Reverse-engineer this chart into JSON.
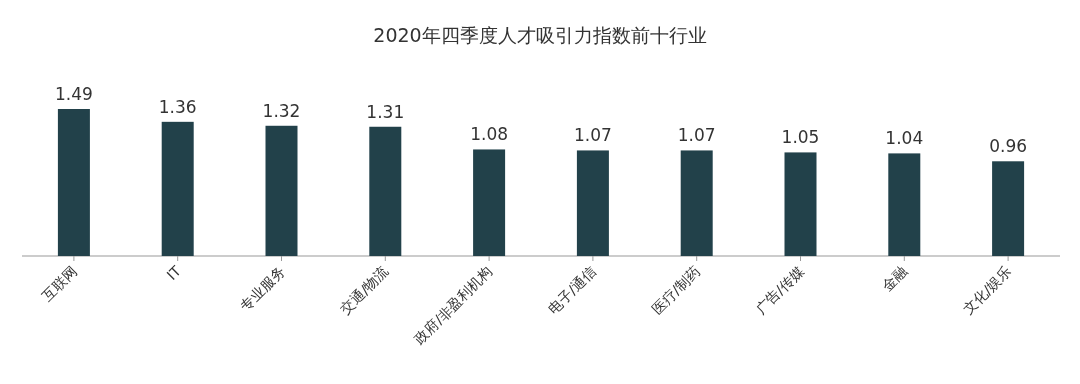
{
  "chart_data": {
    "type": "bar",
    "title": "2020年四季度人才吸引力指数前十行业",
    "categories": [
      "互联网",
      "IT",
      "专业服务",
      "交通/物流",
      "政府/非盈利机构",
      "电子/通信",
      "医疗/制药",
      "广告/传媒",
      "金融",
      "文化/娱乐"
    ],
    "values": [
      1.49,
      1.36,
      1.32,
      1.31,
      1.08,
      1.07,
      1.07,
      1.05,
      1.04,
      0.96
    ],
    "color": "#22414a",
    "data_labels": true
  }
}
